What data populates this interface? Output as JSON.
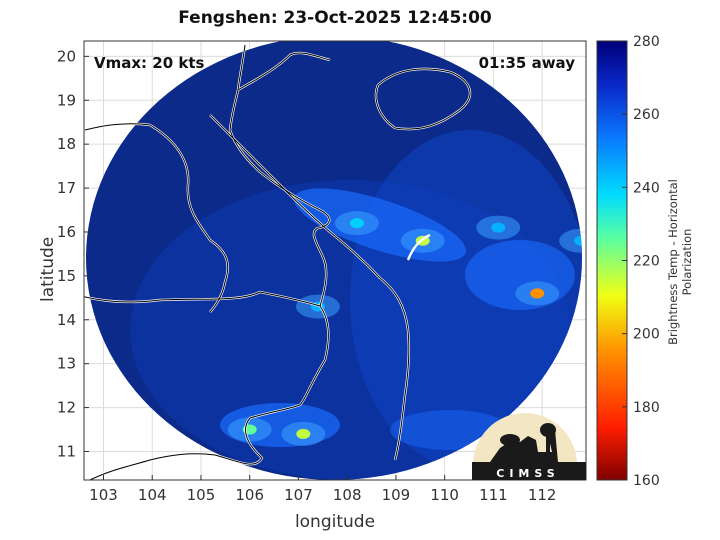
{
  "plot": {
    "title": "Fengshen: 23-Oct-2025 12:45:00",
    "xlabel": "longitude",
    "ylabel": "latitude",
    "vmax_label": "Vmax: 20 kts",
    "time_away": "01:35 away",
    "x_ticks": [
      "103",
      "104",
      "105",
      "106",
      "107",
      "108",
      "109",
      "110",
      "111",
      "112"
    ],
    "y_ticks": [
      "20",
      "19",
      "18",
      "17",
      "16",
      "15",
      "14",
      "13",
      "12",
      "11"
    ],
    "xlim": [
      102.6,
      112.9
    ],
    "ylim": [
      10.35,
      20.35
    ],
    "swath_center": {
      "lon": 107.6,
      "lat": 15.55
    },
    "hot_spots": [
      {
        "lon": 109.55,
        "lat": 15.8,
        "tb": 215
      },
      {
        "lon": 108.2,
        "lat": 16.2,
        "tb": 240
      },
      {
        "lon": 111.9,
        "lat": 14.6,
        "tb": 195
      },
      {
        "lon": 107.1,
        "lat": 11.4,
        "tb": 215
      },
      {
        "lon": 106.0,
        "lat": 11.5,
        "tb": 225
      },
      {
        "lon": 107.4,
        "lat": 14.3,
        "tb": 245
      },
      {
        "lon": 112.8,
        "lat": 15.8,
        "tb": 245
      },
      {
        "lon": 111.1,
        "lat": 16.1,
        "tb": 245
      }
    ]
  },
  "colorbar": {
    "label": "Brightness Temp - Horizontal Polarization",
    "ticks": [
      "280",
      "260",
      "240",
      "220",
      "200",
      "180",
      "160"
    ],
    "range": [
      160,
      280
    ]
  },
  "logo": {
    "text": "CIMSS"
  },
  "colors": {
    "background_swath": "#0b2a8a",
    "frame": "#000000"
  }
}
